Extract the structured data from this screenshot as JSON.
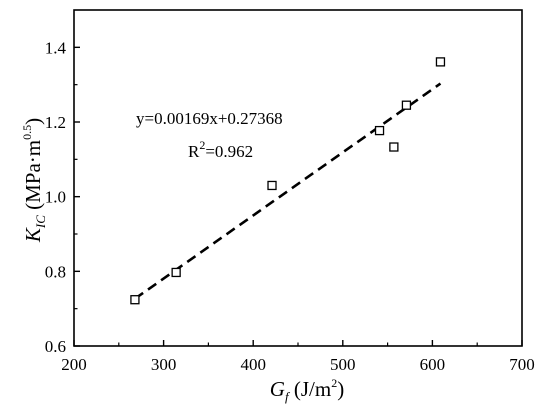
{
  "chart_data": {
    "type": "scatter",
    "x": [
      268,
      314,
      421,
      541,
      557,
      571,
      609
    ],
    "y": [
      0.724,
      0.797,
      1.03,
      1.177,
      1.133,
      1.245,
      1.361
    ],
    "xlim": [
      200,
      700
    ],
    "ylim": [
      0.6,
      1.5
    ],
    "xticks": [
      200,
      300,
      400,
      500,
      600,
      700
    ],
    "yticks": [
      0.6,
      0.8,
      1.0,
      1.2,
      1.4
    ],
    "xtick_labels": [
      "200",
      "300",
      "400",
      "500",
      "600",
      "700"
    ],
    "ytick_labels": [
      "0.6",
      "0.8",
      "1.0",
      "1.2",
      "1.4"
    ],
    "xlabel": {
      "main": "G",
      "sub": "f",
      "unit": " (J/m",
      "sup": "2",
      "close": ")"
    },
    "ylabel": {
      "main": "K",
      "sub": "IC",
      "unit": " (MPa·m",
      "sup": "0.5",
      "close": ")"
    },
    "fit": {
      "slope": 0.00169,
      "intercept": 0.27368,
      "x_range": [
        268,
        609
      ],
      "style": "dashed"
    },
    "annotations": {
      "equation": "y=0.00169x+0.27368",
      "r2_prefix": "R",
      "r2_sup": "2",
      "r2_value": "=0.962"
    },
    "marker": "open-square",
    "grid": false,
    "legend": "none"
  }
}
